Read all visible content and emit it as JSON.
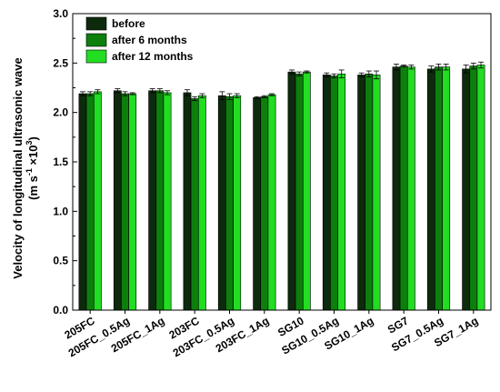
{
  "chart_data": {
    "type": "bar",
    "title": "",
    "xlabel": "",
    "ylabel_line1": "Velocity of longitudinal ultrasonic wave",
    "ylabel_line2_parts": [
      "(m s",
      "-1",
      " ×10",
      "3",
      ")"
    ],
    "ylim": [
      0.0,
      3.0
    ],
    "yticks": [
      "0.0",
      "0.5",
      "1.0",
      "1.5",
      "2.0",
      "2.5",
      "3.0"
    ],
    "grid": false,
    "legend_position": "top-left",
    "categories": [
      "205FC",
      "205FC_0.5Ag",
      "205FC_1Ag",
      "203FC",
      "203FC_0.5Ag",
      "203FC_1Ag",
      "SG10",
      "SG10_0.5Ag",
      "SG10_1Ag",
      "SG7",
      "SG7_0.5Ag",
      "SG7_1Ag"
    ],
    "series": [
      {
        "name": "before",
        "color": "#0d2a0d",
        "values": [
          2.19,
          2.22,
          2.22,
          2.2,
          2.17,
          2.15,
          2.41,
          2.38,
          2.38,
          2.46,
          2.44,
          2.44
        ],
        "errors": [
          0.02,
          0.02,
          0.02,
          0.03,
          0.04,
          0.01,
          0.02,
          0.02,
          0.02,
          0.03,
          0.03,
          0.04
        ]
      },
      {
        "name": "after 6 months",
        "color": "#0d7f0d",
        "values": [
          2.19,
          2.19,
          2.22,
          2.14,
          2.16,
          2.16,
          2.39,
          2.37,
          2.39,
          2.47,
          2.46,
          2.47
        ],
        "errors": [
          0.02,
          0.02,
          0.02,
          0.02,
          0.03,
          0.01,
          0.02,
          0.02,
          0.03,
          0.01,
          0.03,
          0.03
        ]
      },
      {
        "name": "after 12 months",
        "color": "#22dd22",
        "values": [
          2.21,
          2.19,
          2.2,
          2.17,
          2.17,
          2.18,
          2.41,
          2.39,
          2.38,
          2.46,
          2.46,
          2.48
        ],
        "errors": [
          0.02,
          0.01,
          0.02,
          0.02,
          0.02,
          0.01,
          0.01,
          0.04,
          0.04,
          0.02,
          0.03,
          0.03
        ]
      }
    ]
  }
}
